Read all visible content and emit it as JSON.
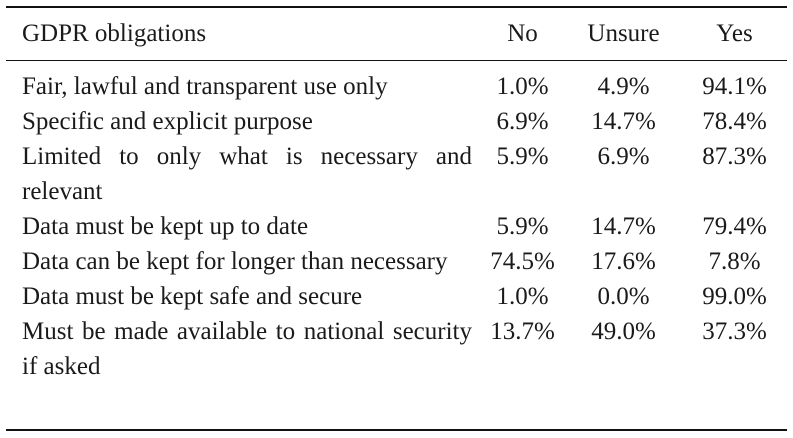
{
  "table": {
    "headers": [
      "GDPR obligations",
      "No",
      "Unsure",
      "Yes"
    ],
    "rows": [
      {
        "label": "Fair, lawful and transparent use only",
        "no": "1.0%",
        "unsure": "4.9%",
        "yes": "94.1%"
      },
      {
        "label": "Specific and explicit purpose",
        "no": "6.9%",
        "unsure": "14.7%",
        "yes": "78.4%"
      },
      {
        "label": "Limited to only what is necessary and relevant",
        "no": "5.9%",
        "unsure": "6.9%",
        "yes": "87.3%"
      },
      {
        "label": "Data must be kept up to date",
        "no": "5.9%",
        "unsure": "14.7%",
        "yes": "79.4%"
      },
      {
        "label": "Data can be kept for longer than ne­cessary",
        "no": "74.5%",
        "unsure": "17.6%",
        "yes": "7.8%"
      },
      {
        "label": "Data must be kept safe and secure",
        "no": "1.0%",
        "unsure": "0.0%",
        "yes": "99.0%"
      },
      {
        "label": "Must be made available to national security if asked",
        "no": "13.7%",
        "unsure": "49.0%",
        "yes": "37.3%"
      }
    ]
  }
}
